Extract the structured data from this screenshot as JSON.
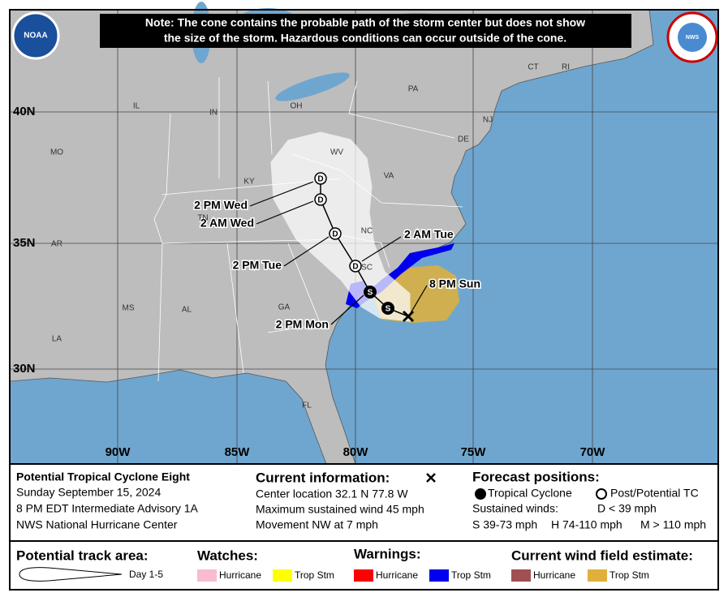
{
  "note": [
    "Note: The cone contains the probable path of the storm center but does not show",
    "the size of the storm. Hazardous conditions can occur outside of the cone."
  ],
  "logos": {
    "noaa": "NOAA",
    "nws": "NWS"
  },
  "map": {
    "latitudes": [
      "40N",
      "35N",
      "30N"
    ],
    "longitudes": [
      "90W",
      "85W",
      "80W",
      "75W",
      "70W"
    ],
    "states": [
      "IL",
      "IN",
      "OH",
      "PA",
      "CT",
      "RI",
      "NJ",
      "DE",
      "MO",
      "KY",
      "WV",
      "VA",
      "TN",
      "NC",
      "SC",
      "AR",
      "MS",
      "AL",
      "GA",
      "LA",
      "FL"
    ],
    "forecast_times": [
      "2 PM Wed",
      "2 AM Wed",
      "2 PM Tue",
      "2 AM Tue",
      "8 PM Sun",
      "2 PM Mon"
    ],
    "point_types": [
      "D",
      "D",
      "D",
      "D",
      "S",
      "S"
    ]
  },
  "info": {
    "storm_name": "Potential Tropical Cyclone Eight",
    "date": "Sunday September 15, 2024",
    "advisory": "8 PM EDT Intermediate Advisory 1A",
    "source": "NWS National Hurricane Center"
  },
  "current": {
    "title": "Current information:",
    "center_location": "Center location 32.1 N 77.8 W",
    "max_wind": "Maximum sustained wind 45 mph",
    "movement": "Movement NW at 7 mph"
  },
  "forecast": {
    "title": "Forecast positions:",
    "tropical_cyclone": "Tropical Cyclone",
    "post_potential": "Post/Potential TC",
    "sustained_winds": "Sustained winds:",
    "d": "D < 39 mph",
    "s": "S 39-73 mph",
    "h": "H 74-110 mph",
    "m": "M > 110 mph"
  },
  "key": {
    "track_area": "Potential track area:",
    "day": "Day 1-5",
    "watches": "Watches:",
    "watch_items": [
      "Hurricane",
      "Trop Stm"
    ],
    "warnings": "Warnings:",
    "warning_items": [
      "Hurricane",
      "Trop Stm"
    ],
    "wind_field": "Current wind field estimate:",
    "wind_items": [
      "Hurricane",
      "Trop Stm"
    ]
  }
}
